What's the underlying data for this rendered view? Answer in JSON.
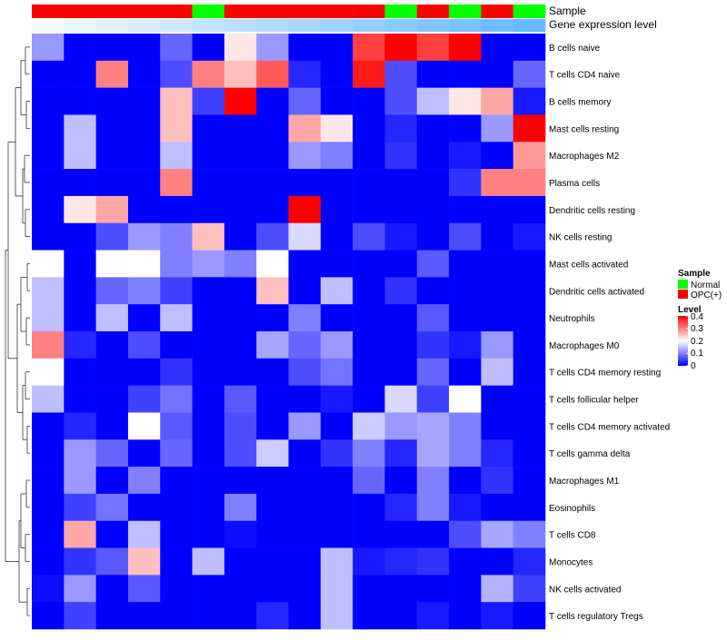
{
  "chart_data": {
    "type": "heatmap",
    "title": "",
    "annotation_tracks": [
      {
        "name": "Sample",
        "values": [
          "OPC(+)",
          "OPC(+)",
          "OPC(+)",
          "OPC(+)",
          "OPC(+)",
          "Normal",
          "OPC(+)",
          "OPC(+)",
          "OPC(+)",
          "OPC(+)",
          "OPC(+)",
          "Normal",
          "OPC(+)",
          "Normal",
          "OPC(+)",
          "Normal"
        ]
      },
      {
        "name": "Gene expression level",
        "values": [
          0.0,
          0.01,
          0.02,
          0.03,
          0.04,
          0.05,
          0.06,
          0.07,
          0.08,
          0.09,
          0.1,
          0.11,
          0.12,
          0.13,
          0.14,
          0.15
        ]
      }
    ],
    "rows": [
      "B cells naive",
      "T cells CD4 naive",
      "B cells memory",
      "Mast cells resting",
      "Macrophages M2",
      "Plasma cells",
      "Dendritic cells resting",
      "NK cells resting",
      "Mast cells activated",
      "Dendritic cells activated",
      "Neutrophils",
      "Macrophages M0",
      "T cells CD4 memory resting",
      "T cells follicular helper",
      "T cells CD4 memory activated",
      "T cells gamma delta",
      "Macrophages M1",
      "Eosinophils",
      "T cells CD8",
      "Monocytes",
      "NK cells activated",
      "T cells regulatory  Tregs"
    ],
    "values": [
      [
        0.12,
        0,
        0,
        0,
        0.08,
        0,
        0.22,
        0.12,
        0,
        0,
        0.35,
        0.4,
        0.35,
        0.4,
        0,
        0
      ],
      [
        0,
        0,
        0.3,
        0,
        0.06,
        0.3,
        0.25,
        0.33,
        0.03,
        0,
        0.38,
        0.06,
        0,
        0,
        0,
        0.08
      ],
      [
        0,
        0,
        0,
        0,
        0.25,
        0.05,
        0.4,
        0,
        0.08,
        0,
        0,
        0.06,
        0.15,
        0.22,
        0.27,
        0.02
      ],
      [
        0,
        0.15,
        0,
        0,
        0.25,
        0,
        0,
        0,
        0.27,
        0.22,
        0,
        0.03,
        0,
        0,
        0.12,
        0.4
      ],
      [
        0,
        0.15,
        0,
        0,
        0.15,
        0,
        0,
        0,
        0.12,
        0.1,
        0,
        0.04,
        0,
        0.02,
        0,
        0.28
      ],
      [
        0,
        0,
        0,
        0,
        0.3,
        0,
        0,
        0,
        0,
        0,
        0,
        0,
        0,
        0.04,
        0.3,
        0.3
      ],
      [
        0,
        0.22,
        0.27,
        0,
        0,
        0,
        0,
        0,
        0.4,
        0,
        0,
        0,
        0,
        0,
        0,
        0
      ],
      [
        0,
        0,
        0.06,
        0.12,
        0.1,
        0.25,
        0,
        0.06,
        0.17,
        0,
        0.06,
        0.02,
        0,
        0.06,
        0,
        0.02
      ],
      [
        0.2,
        0,
        0.2,
        0.2,
        0.1,
        0.12,
        0.1,
        0.2,
        0,
        0,
        0,
        0,
        0.07,
        0,
        0,
        0
      ],
      [
        0.15,
        0,
        0.08,
        0.1,
        0.05,
        0,
        0,
        0.25,
        0,
        0.15,
        0,
        0.04,
        0,
        0,
        0,
        0
      ],
      [
        0.15,
        0,
        0.15,
        0,
        0.15,
        0,
        0,
        0,
        0.1,
        0,
        0,
        0,
        0.07,
        0,
        0,
        0
      ],
      [
        0.3,
        0.03,
        0,
        0.06,
        0,
        0,
        0,
        0.13,
        0.08,
        0.12,
        0,
        0,
        0.04,
        0.02,
        0.12,
        0
      ],
      [
        0.2,
        0,
        0,
        0,
        0.04,
        0,
        0,
        0,
        0.06,
        0.09,
        0,
        0,
        0.08,
        0,
        0.15,
        0
      ],
      [
        0.15,
        0,
        0,
        0.05,
        0.09,
        0,
        0.07,
        0,
        0,
        0.02,
        0,
        0.17,
        0.05,
        0.2,
        0,
        0
      ],
      [
        0,
        0.03,
        0,
        0.2,
        0.07,
        0,
        0.06,
        0,
        0.12,
        0,
        0.16,
        0.12,
        0.13,
        0.1,
        0,
        0
      ],
      [
        0,
        0.12,
        0.08,
        0,
        0.08,
        0,
        0.06,
        0.16,
        0,
        0.04,
        0.1,
        0.03,
        0.13,
        0.1,
        0.03,
        0
      ],
      [
        0,
        0.12,
        0,
        0.1,
        0,
        0,
        0,
        0,
        0,
        0,
        0.08,
        0,
        0.1,
        0,
        0.04,
        0
      ],
      [
        0,
        0.05,
        0.09,
        0,
        0,
        0,
        0.1,
        0,
        0,
        0,
        0,
        0.03,
        0.1,
        0.02,
        0,
        0
      ],
      [
        0,
        0.27,
        0,
        0.15,
        0,
        0,
        0.01,
        0,
        0,
        0,
        0,
        0,
        0,
        0.06,
        0.13,
        0.1
      ],
      [
        0,
        0.04,
        0.07,
        0.25,
        0,
        0.15,
        0,
        0,
        0,
        0.15,
        0.02,
        0.03,
        0.04,
        0,
        0,
        0.03
      ],
      [
        0.01,
        0.12,
        0,
        0.07,
        0,
        0,
        0,
        0,
        0,
        0.15,
        0,
        0,
        0,
        0,
        0.14,
        0.05
      ],
      [
        0,
        0.05,
        0,
        0,
        0,
        0,
        0,
        0.03,
        0,
        0.15,
        0,
        0,
        0.02,
        0,
        0.02,
        0
      ]
    ],
    "color_scale": {
      "min": 0,
      "max": 0.4,
      "low": "#0000ff",
      "mid": "#ffffff",
      "high": "#ff0000"
    },
    "legend": {
      "sample_title": "Sample",
      "sample_entries": [
        {
          "label": "Normal",
          "color": "#00ff00"
        },
        {
          "label": "OPC(+)",
          "color": "#ff0000"
        }
      ],
      "level_title": "Level",
      "level_ticks": [
        "0.4",
        "0.3",
        "0.2",
        "0.1",
        "0"
      ],
      "placement": "right"
    },
    "row_dendrogram": true,
    "grid": false
  }
}
